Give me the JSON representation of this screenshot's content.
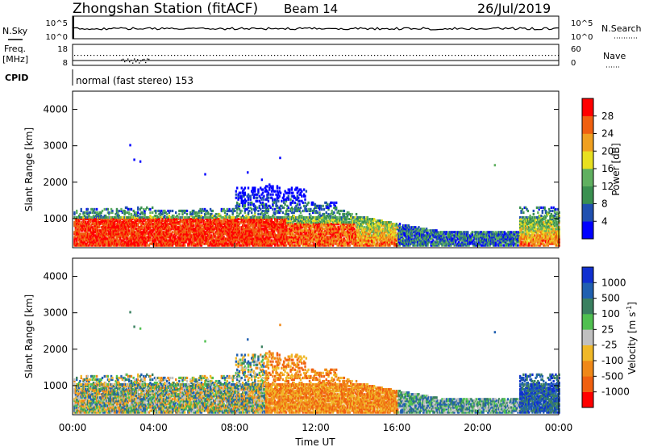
{
  "header": {
    "station": "Zhongshan Station (fitACF)",
    "beam": "Beam 14",
    "date": "26/Jul/2019"
  },
  "left_labels": {
    "nsky": "N.Sky",
    "freq_top": "Freq.",
    "freq_unit": "[MHz]",
    "cpid": "CPID"
  },
  "right_labels": {
    "nsearch": "N.Search",
    "nave": "Nave"
  },
  "cpid_text": "normal (fast stereo) 153",
  "noise_panel": {
    "left_ticks": [
      "10^5",
      "10^0"
    ],
    "right_ticks": [
      "10^5",
      "10^0"
    ]
  },
  "freq_panel": {
    "left_ticks": [
      "18",
      "8"
    ],
    "right_ticks": [
      "60",
      "0"
    ]
  },
  "colors": {
    "power": [
      "#0000ff",
      "#2050b0",
      "#3a9050",
      "#60b060",
      "#e8e020",
      "#f0a020",
      "#f06010",
      "#ff0000"
    ],
    "velocity": [
      "#ff0000",
      "#f06010",
      "#f08818",
      "#f0b828",
      "#c0c0c0",
      "#50c050",
      "#3a8060",
      "#2060b0",
      "#1030d0"
    ]
  },
  "chart_data": [
    {
      "type": "heatmap",
      "name": "power",
      "ylabel": "Slant Range [km]",
      "yticks": [
        "1000",
        "2000",
        "3000",
        "4000"
      ],
      "ylim": [
        200,
        4500
      ],
      "xlim": [
        0,
        24
      ],
      "colorbar_label": "Power [dB]",
      "colorbar_ticks": [
        "4",
        "8",
        "12",
        "16",
        "20",
        "24",
        "28"
      ],
      "colorbar_range": [
        0,
        32
      ]
    },
    {
      "type": "heatmap",
      "name": "velocity",
      "ylabel": "Slant Range [km]",
      "yticks": [
        "1000",
        "2000",
        "3000",
        "4000"
      ],
      "ylim": [
        200,
        4500
      ],
      "xlim": [
        0,
        24
      ],
      "colorbar_label": "Velocity [m s-1]",
      "colorbar_ticks": [
        "1000",
        "500",
        "100",
        "25",
        "-25",
        "-100",
        "-500",
        "-1000"
      ]
    }
  ],
  "time_axis": {
    "ticks": [
      "00:00",
      "04:00",
      "08:00",
      "12:00",
      "16:00",
      "20:00",
      "00:00"
    ],
    "label": "Time UT"
  }
}
